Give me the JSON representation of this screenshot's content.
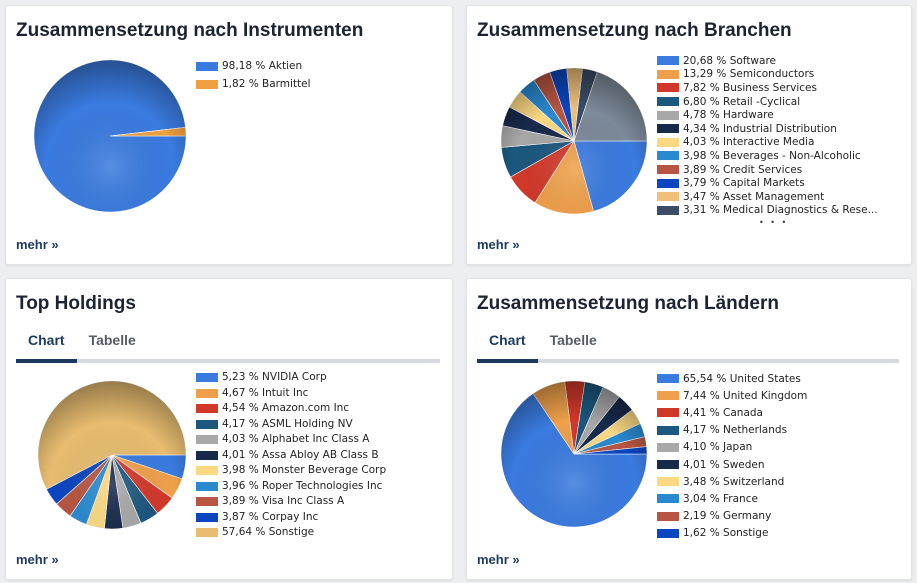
{
  "cards": [
    {
      "title": "Zusammensetzung nach Instrumenten",
      "more": "mehr »",
      "items": [
        {
          "label": "98,18 % Aktien",
          "value": 98.18,
          "color": "#3a7be0"
        },
        {
          "label": "1,82 % Barmittel",
          "value": 1.82,
          "color": "#f0a040"
        }
      ]
    },
    {
      "title": "Zusammensetzung nach Branchen",
      "more": "mehr »",
      "ellipsis": "• • •",
      "other_color": "#7d8a99",
      "items": [
        {
          "label": "20,68 % Software",
          "value": 20.68,
          "color": "#3a7be0"
        },
        {
          "label": "13,29 % Semiconductors",
          "value": 13.29,
          "color": "#f0a04a"
        },
        {
          "label": "7,82 % Business Services",
          "value": 7.82,
          "color": "#d2382a"
        },
        {
          "label": "6,80 % Retail -Cyclical",
          "value": 6.8,
          "color": "#1b577e"
        },
        {
          "label": "4,78 % Hardware",
          "value": 4.78,
          "color": "#a8a8a8"
        },
        {
          "label": "4,34 % Industrial Distribution",
          "value": 4.34,
          "color": "#182a4c"
        },
        {
          "label": "4,03 % Interactive Media",
          "value": 4.03,
          "color": "#fbd982"
        },
        {
          "label": "3,98 % Beverages - Non-Alcoholic",
          "value": 3.98,
          "color": "#2a8ad0"
        },
        {
          "label": "3,89 % Credit Services",
          "value": 3.89,
          "color": "#b85542"
        },
        {
          "label": "3,79 % Capital Markets",
          "value": 3.79,
          "color": "#0b45c0"
        },
        {
          "label": "3,47 % Asset Management",
          "value": 3.47,
          "color": "#eec07a"
        },
        {
          "label": "3,31 % Medical Diagnostics & Rese...",
          "value": 3.31,
          "color": "#3a4c66"
        }
      ]
    },
    {
      "title": "Top Holdings",
      "tabs": [
        "Chart",
        "Tabelle"
      ],
      "more": "mehr »",
      "items": [
        {
          "label": "5,23 % NVIDIA Corp",
          "value": 5.23,
          "color": "#3a7be0"
        },
        {
          "label": "4,67 % Intuit Inc",
          "value": 4.67,
          "color": "#f0a04a"
        },
        {
          "label": "4,54 % Amazon.com Inc",
          "value": 4.54,
          "color": "#d2382a"
        },
        {
          "label": "4,17 % ASML Holding NV",
          "value": 4.17,
          "color": "#1b577e"
        },
        {
          "label": "4,03 % Alphabet Inc Class A",
          "value": 4.03,
          "color": "#a8a8a8"
        },
        {
          "label": "4,01 % Assa Abloy AB Class B",
          "value": 4.01,
          "color": "#182a4c"
        },
        {
          "label": "3,98 % Monster Beverage Corp",
          "value": 3.98,
          "color": "#fbd982"
        },
        {
          "label": "3,96 % Roper Technologies Inc",
          "value": 3.96,
          "color": "#2a8ad0"
        },
        {
          "label": "3,89 % Visa Inc Class A",
          "value": 3.89,
          "color": "#b85542"
        },
        {
          "label": "3,87 % Corpay Inc",
          "value": 3.87,
          "color": "#0b45c0"
        },
        {
          "label": "57,64 % Sonstige",
          "value": 57.64,
          "color": "#e8bd70"
        }
      ]
    },
    {
      "title": "Zusammensetzung nach Ländern",
      "tabs": [
        "Chart",
        "Tabelle"
      ],
      "more": "mehr »",
      "items": [
        {
          "label": "65,54 % United States",
          "value": 65.54,
          "color": "#3a7be0"
        },
        {
          "label": "7,44 % United Kingdom",
          "value": 7.44,
          "color": "#f0a04a"
        },
        {
          "label": "4,41 % Canada",
          "value": 4.41,
          "color": "#d2382a"
        },
        {
          "label": "4,17 % Netherlands",
          "value": 4.17,
          "color": "#1b577e"
        },
        {
          "label": "4,10 % Japan",
          "value": 4.1,
          "color": "#a8a8a8"
        },
        {
          "label": "4,01 % Sweden",
          "value": 4.01,
          "color": "#182a4c"
        },
        {
          "label": "3,48 % Switzerland",
          "value": 3.48,
          "color": "#fbd982"
        },
        {
          "label": "3,04 % France",
          "value": 3.04,
          "color": "#2a8ad0"
        },
        {
          "label": "2,19 % Germany",
          "value": 2.19,
          "color": "#b85542"
        },
        {
          "label": "1,62 % Sonstige",
          "value": 1.62,
          "color": "#0b45c0"
        }
      ]
    }
  ]
}
